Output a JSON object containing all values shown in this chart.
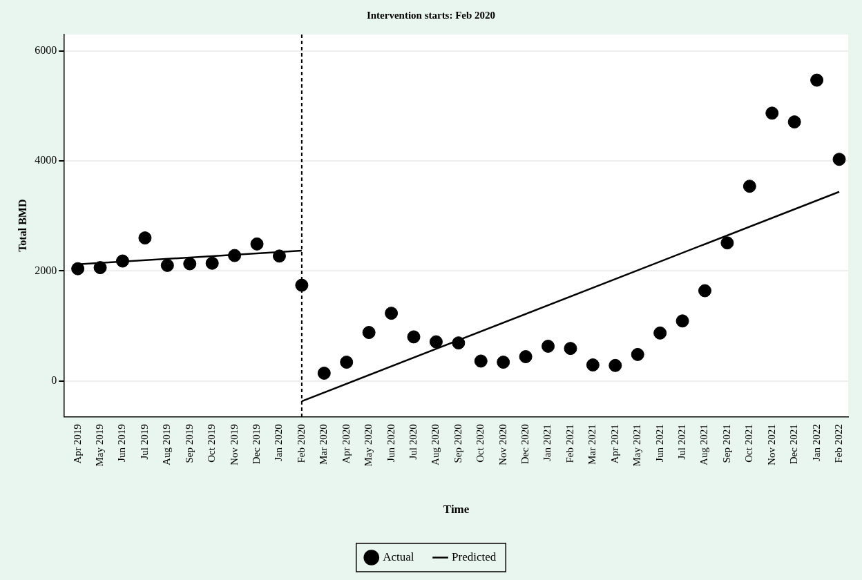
{
  "chart_data": {
    "type": "scatter",
    "title": "Intervention starts: Feb 2020",
    "xlabel": "Time",
    "ylabel": "Total BMD",
    "categories": [
      "Apr 2019",
      "May 2019",
      "Jun 2019",
      "Jul 2019",
      "Aug 2019",
      "Sep 2019",
      "Oct 2019",
      "Nov 2019",
      "Dec 2019",
      "Jan 2020",
      "Feb 2020",
      "Mar 2020",
      "Apr 2020",
      "May 2020",
      "Jun 2020",
      "Jul 2020",
      "Aug 2020",
      "Sep 2020",
      "Oct 2020",
      "Nov 2020",
      "Dec 2020",
      "Jan 2021",
      "Feb 2021",
      "Mar 2021",
      "Apr 2021",
      "May 2021",
      "Jun 2021",
      "Jul 2021",
      "Aug 2021",
      "Sep 2021",
      "Oct 2021",
      "Nov 2021",
      "Dec 2021",
      "Jan 2022",
      "Feb 2022"
    ],
    "series": [
      {
        "name": "Actual",
        "type": "scatter",
        "color": "#000000",
        "marker": "circle",
        "values": [
          2040,
          2060,
          2180,
          2600,
          2100,
          2130,
          2140,
          2280,
          2490,
          2270,
          1740,
          140,
          340,
          880,
          1230,
          800,
          710,
          690,
          360,
          340,
          440,
          630,
          590,
          290,
          280,
          480,
          870,
          1090,
          1640,
          2510,
          3540,
          4870,
          4710,
          5470,
          4030
        ]
      },
      {
        "name": "Predicted",
        "type": "line",
        "color": "#000000",
        "marker": "none",
        "x": [
          "Apr 2019",
          "Feb 2020"
        ],
        "values": [
          2120,
          2370
        ]
      },
      {
        "type": "line",
        "color": "#000000",
        "marker": "none",
        "x": [
          "Feb 2020",
          "Feb 2022"
        ],
        "values": [
          -370,
          3440
        ]
      }
    ],
    "ylim": [
      -650,
      6300
    ],
    "yticks": [
      0,
      2000,
      4000,
      6000
    ],
    "grid": "y",
    "legend": "bottom",
    "ref_lines": [
      {
        "axis": "x",
        "value": "Feb 2020",
        "color": "#000000",
        "line_style": "dashed"
      }
    ]
  }
}
